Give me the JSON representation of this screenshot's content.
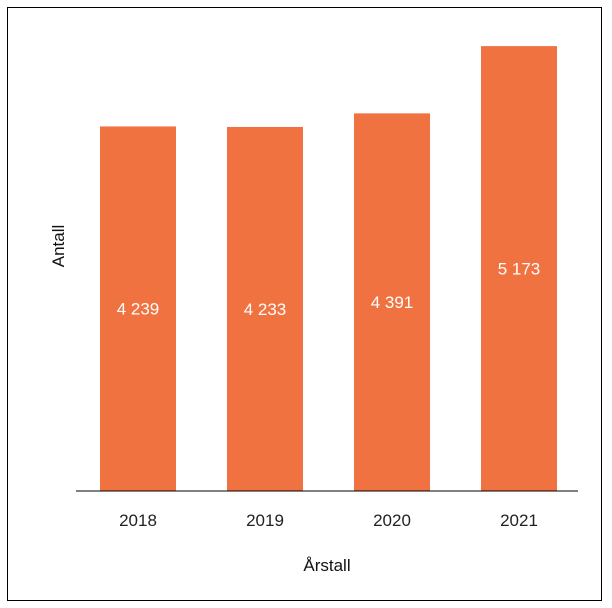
{
  "chart_data": {
    "type": "bar",
    "categories": [
      "2018",
      "2019",
      "2020",
      "2021"
    ],
    "values": [
      4239,
      4233,
      4391,
      5173
    ],
    "value_labels": [
      "4 239",
      "4 233",
      "4 391",
      "5 173"
    ],
    "title": "",
    "xlabel": "Årstall",
    "ylabel": "Antall",
    "ylim": [
      0,
      5500
    ],
    "grid": false,
    "bar_color": "#f07240",
    "bar_label_color": "#ffffff"
  }
}
